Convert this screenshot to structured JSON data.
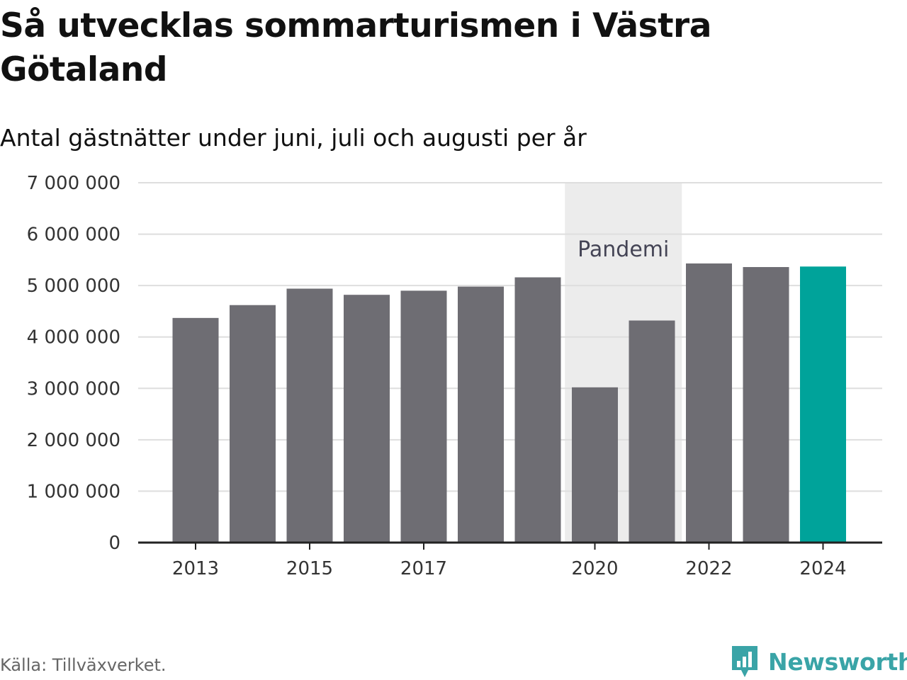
{
  "title": "Så utvecklas sommarturismen i Västra Götaland",
  "subtitle": "Antal gästnätter under juni, juli och augusti per år",
  "source": "Källa: Tillväxverket.",
  "logo": {
    "text": "Newsworthy",
    "icon": "newsworthy-chart-bubble-icon",
    "color": "#3aa4a7"
  },
  "chart_data": {
    "type": "bar",
    "categories": [
      "2013",
      "2014",
      "2015",
      "2016",
      "2017",
      "2018",
      "2019",
      "2020",
      "2021",
      "2022",
      "2023",
      "2024"
    ],
    "values": [
      4370000,
      4620000,
      4940000,
      4820000,
      4900000,
      4980000,
      5160000,
      3020000,
      4320000,
      5430000,
      5360000,
      5370000
    ],
    "x_tick_labels": [
      "2013",
      "2015",
      "2017",
      "2020",
      "2022",
      "2024"
    ],
    "y_tick_labels": [
      "0",
      "1 000 000",
      "2 000 000",
      "3 000 000",
      "4 000 000",
      "5 000 000",
      "6 000 000",
      "7 000 000"
    ],
    "ylim": [
      0,
      7000000
    ],
    "ticks": [
      0,
      1000000,
      2000000,
      3000000,
      4000000,
      5000000,
      6000000,
      7000000
    ],
    "grid": true,
    "bar_color": "#6e6d73",
    "highlight": {
      "category": "2024",
      "color": "#00a39a"
    },
    "annotation": {
      "label": "Pandemi",
      "from": "2020",
      "to": "2021",
      "color": "#ececec"
    }
  }
}
